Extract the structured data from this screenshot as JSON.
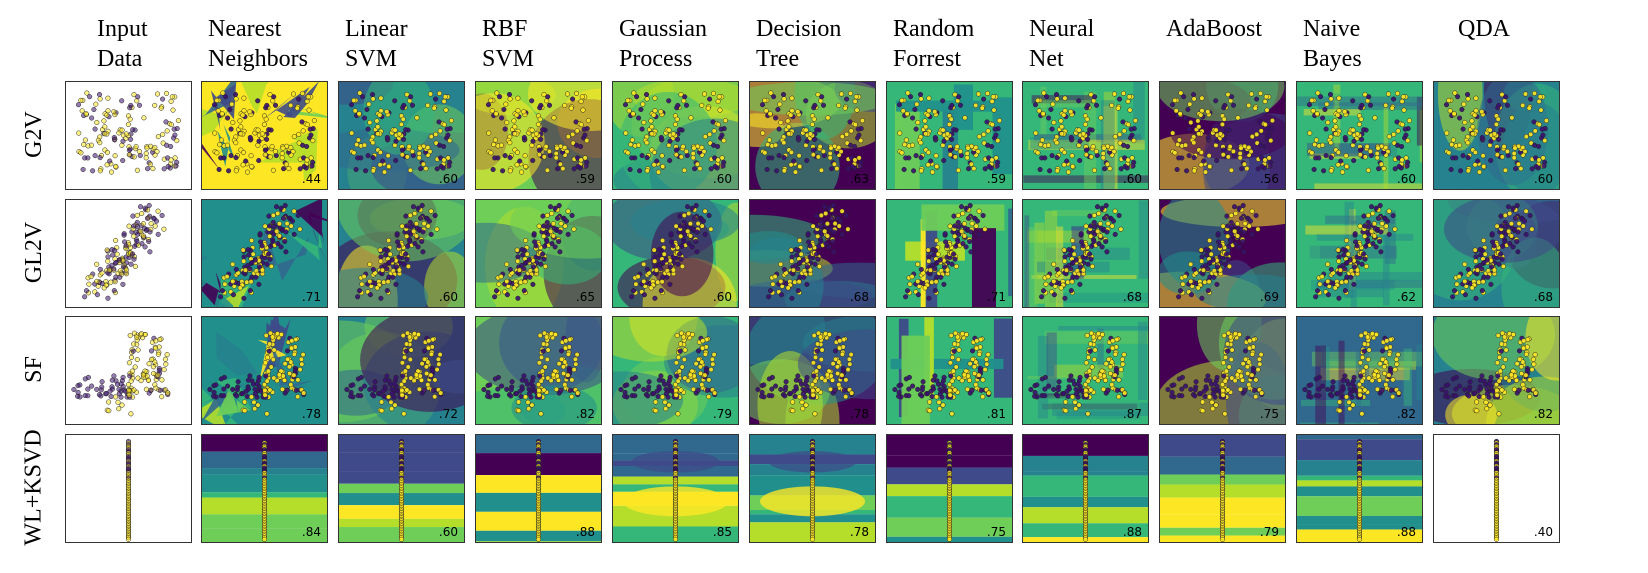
{
  "columns": [
    "Input Data",
    "Nearest Neighbors",
    "Linear SVM",
    "RBF SVM",
    "Gaussian Process",
    "Decision Tree",
    "Random Forrest",
    "Neural Net",
    "AdaBoost",
    "Naive Bayes",
    "QDA"
  ],
  "column_lines": [
    [
      "Input",
      "Data"
    ],
    [
      "Nearest",
      "Neighbors"
    ],
    [
      "Linear",
      "SVM"
    ],
    [
      "RBF",
      "SVM"
    ],
    [
      "Gaussian",
      "Process"
    ],
    [
      "Decision",
      "Tree"
    ],
    [
      "Random",
      "Forrest"
    ],
    [
      "Neural",
      "Net"
    ],
    [
      "AdaBoost",
      ""
    ],
    [
      "Naive",
      "Bayes"
    ],
    [
      "QDA",
      ""
    ]
  ],
  "rows": [
    "G2V",
    "GL2V",
    "SF",
    "WL+KSVD"
  ],
  "colors": {
    "low": "#440154",
    "mid": "#21908c",
    "high": "#fde725",
    "point_low": "#3b0f70",
    "point_high": "#fde725"
  },
  "chart_data": {
    "type": "table",
    "title": "",
    "row_labels": [
      "G2V",
      "GL2V",
      "SF",
      "WL+KSVD"
    ],
    "column_labels": [
      "Nearest Neighbors",
      "Linear SVM",
      "RBF SVM",
      "Gaussian Process",
      "Decision Tree",
      "Random Forrest",
      "Neural Net",
      "AdaBoost",
      "Naive Bayes",
      "QDA"
    ],
    "scores": [
      [
        ".44",
        ".60",
        ".59",
        ".60",
        ".63",
        ".59",
        ".60",
        ".56",
        ".60",
        ".60"
      ],
      [
        ".71",
        ".60",
        ".65",
        ".60",
        ".68",
        ".71",
        ".68",
        ".69",
        ".62",
        ".68"
      ],
      [
        ".78",
        ".72",
        ".82",
        ".79",
        ".78",
        ".81",
        ".87",
        ".75",
        ".82",
        ".82"
      ],
      [
        ".84",
        ".60",
        ".88",
        ".85",
        ".78",
        ".75",
        ".88",
        ".79",
        ".88",
        ".40"
      ]
    ],
    "values": [
      [
        0.44,
        0.6,
        0.59,
        0.6,
        0.63,
        0.59,
        0.6,
        0.56,
        0.6,
        0.6
      ],
      [
        0.71,
        0.6,
        0.65,
        0.6,
        0.68,
        0.71,
        0.68,
        0.69,
        0.62,
        0.68
      ],
      [
        0.78,
        0.72,
        0.82,
        0.79,
        0.78,
        0.81,
        0.87,
        0.75,
        0.82,
        0.82
      ],
      [
        0.84,
        0.6,
        0.88,
        0.85,
        0.78,
        0.75,
        0.88,
        0.79,
        0.88,
        0.4
      ]
    ],
    "blank_panels": [
      [
        3,
        9
      ]
    ]
  }
}
